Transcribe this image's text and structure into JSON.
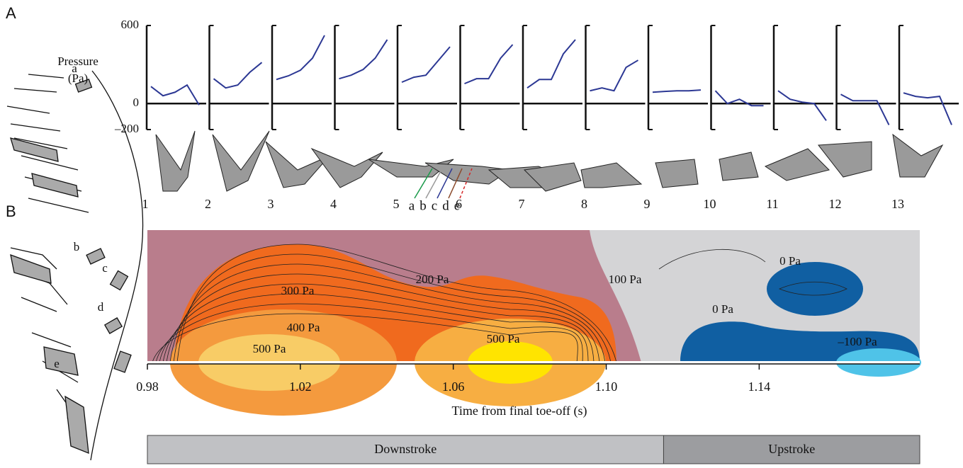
{
  "panel_labels": [
    "A",
    "B"
  ],
  "chart_data": [
    {
      "type": "line",
      "ylabel": [
        "Pressure",
        "(Pa)"
      ],
      "ylim": [
        -200,
        600
      ],
      "yticks": [
        {
          "value": -200,
          "label": "–200"
        },
        0,
        600
      ],
      "color": "#2c3894",
      "panels": [
        {
          "label": "1",
          "values": [
            131,
            60,
            87,
            142,
            -11
          ]
        },
        {
          "label": "2",
          "values": [
            191,
            120,
            142,
            240,
            316
          ]
        },
        {
          "label": "3",
          "values": [
            185,
            213,
            256,
            349,
            524
          ]
        },
        {
          "label": "4",
          "values": [
            191,
            218,
            262,
            349,
            491
          ]
        },
        {
          "label": "5",
          "values": [
            164,
            202,
            218,
            327,
            436
          ]
        },
        {
          "label": "6",
          "values": [
            153,
            191,
            191,
            349,
            453
          ]
        },
        {
          "label": "7",
          "values": [
            120,
            185,
            185,
            382,
            491
          ]
        },
        {
          "label": "8",
          "values": [
            98,
            120,
            98,
            278,
            333
          ]
        },
        {
          "label": "9",
          "values": [
            87,
            93,
            98,
            98,
            104
          ]
        },
        {
          "label": "10",
          "values": [
            98,
            0,
            33,
            -16,
            -16
          ]
        },
        {
          "label": "11",
          "values": [
            98,
            33,
            11,
            0,
            -131
          ]
        },
        {
          "label": "12",
          "values": [
            71,
            22,
            22,
            22,
            -164
          ]
        },
        {
          "label": "13",
          "values": [
            82,
            55,
            44,
            55,
            -164
          ]
        }
      ],
      "sensors": [
        {
          "name": "a",
          "color": "#1a9a4a"
        },
        {
          "name": "b",
          "color": "#9a9a9a"
        },
        {
          "name": "c",
          "color": "#2c3894"
        },
        {
          "name": "d",
          "color": "#8b4a2b"
        },
        {
          "name": "e",
          "color": "#d62728"
        }
      ]
    },
    {
      "type": "contour",
      "xlabel": "Time from final toe-off (s)",
      "xlim": [
        0.98,
        1.182
      ],
      "xticks": [
        0.98,
        1.02,
        1.06,
        {
          "value": 1.1,
          "label": "1.10"
        },
        1.14
      ],
      "contour_labels": [
        "300 Pa",
        "200 Pa",
        "100 Pa",
        "0 Pa",
        "0 Pa",
        "400 Pa",
        "500 Pa",
        "500 Pa",
        "–100 Pa"
      ],
      "phases": [
        {
          "name": "Downstroke",
          "start": 0.98,
          "end": 1.115,
          "color": "#c0c1c4"
        },
        {
          "name": "Upstroke",
          "start": 1.115,
          "end": 1.182,
          "color": "#9c9da0"
        }
      ]
    }
  ]
}
